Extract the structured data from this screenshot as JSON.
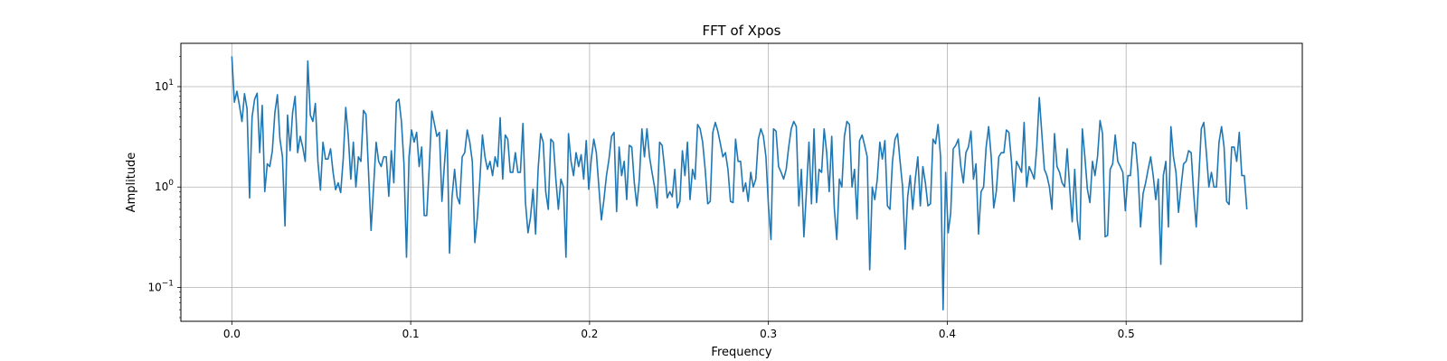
{
  "chart_data": {
    "type": "line",
    "title": "FFT of Xpos",
    "xlabel": "Frequency",
    "ylabel": "Amplitude",
    "xlim": [
      -0.0285,
      0.5985
    ],
    "ylim": [
      0.046,
      27
    ],
    "yscale": "log",
    "grid": true,
    "x_ticks": [
      {
        "value": 0.0,
        "label": "0.0"
      },
      {
        "value": 0.1,
        "label": "0.1"
      },
      {
        "value": 0.2,
        "label": "0.2"
      },
      {
        "value": 0.3,
        "label": "0.3"
      },
      {
        "value": 0.4,
        "label": "0.4"
      },
      {
        "value": 0.5,
        "label": "0.5"
      }
    ],
    "y_ticks": [
      {
        "value": 0.1,
        "base": "10",
        "exp": "−1"
      },
      {
        "value": 1,
        "base": "10",
        "exp": "0"
      },
      {
        "value": 10,
        "base": "10",
        "exp": "1"
      }
    ],
    "series": [
      {
        "color": "#1f77b4",
        "x_start": 0.0,
        "x_end": 0.5675,
        "values": [
          20.0,
          7.0,
          9.0,
          6.5,
          4.5,
          8.5,
          6.0,
          0.78,
          5.0,
          7.5,
          8.6,
          2.2,
          6.5,
          0.9,
          1.7,
          1.6,
          2.3,
          5.5,
          8.3,
          3.0,
          2.0,
          0.41,
          5.2,
          2.3,
          5.5,
          8.0,
          2.2,
          3.2,
          2.5,
          1.8,
          18.0,
          5.2,
          4.5,
          6.8,
          1.8,
          0.93,
          2.8,
          1.9,
          1.9,
          2.4,
          1.4,
          0.94,
          1.1,
          0.88,
          1.9,
          6.2,
          3.2,
          1.2,
          2.8,
          1.0,
          2.0,
          1.8,
          5.8,
          5.3,
          1.4,
          0.37,
          1.0,
          2.8,
          1.8,
          1.6,
          2.0,
          2.0,
          0.81,
          2.3,
          1.1,
          7.0,
          7.5,
          4.5,
          1.7,
          0.2,
          2.0,
          3.7,
          2.8,
          3.5,
          1.6,
          2.5,
          0.52,
          0.52,
          1.6,
          5.7,
          4.3,
          3.2,
          3.5,
          0.72,
          1.7,
          3.7,
          0.22,
          0.8,
          1.5,
          0.8,
          0.68,
          2.0,
          2.2,
          3.7,
          2.8,
          1.8,
          0.28,
          0.5,
          1.2,
          3.3,
          2.0,
          1.5,
          1.8,
          1.3,
          2.0,
          1.6,
          4.9,
          1.2,
          3.3,
          3.0,
          1.4,
          1.4,
          2.2,
          1.4,
          1.4,
          4.3,
          0.7,
          0.35,
          0.5,
          0.95,
          0.34,
          1.5,
          3.4,
          2.8,
          0.9,
          0.6,
          3.0,
          2.8,
          1.2,
          0.6,
          1.2,
          1.0,
          0.2,
          3.4,
          1.8,
          1.3,
          2.2,
          1.6,
          2.1,
          1.2,
          2.9,
          0.95,
          1.9,
          3.0,
          2.2,
          1.0,
          0.47,
          0.75,
          1.3,
          1.9,
          3.2,
          3.5,
          0.57,
          2.5,
          1.3,
          1.8,
          0.75,
          2.6,
          2.5,
          1.1,
          0.65,
          1.2,
          3.8,
          2.0,
          3.8,
          2.0,
          1.4,
          1.0,
          0.62,
          2.8,
          2.6,
          1.5,
          0.78,
          0.9,
          0.8,
          1.5,
          0.62,
          0.72,
          2.3,
          1.3,
          2.8,
          0.75,
          1.5,
          1.2,
          4.2,
          3.8,
          2.8,
          1.5,
          0.68,
          0.72,
          3.5,
          4.4,
          3.6,
          2.7,
          2.0,
          2.2,
          1.5,
          0.72,
          0.7,
          3.0,
          1.8,
          1.8,
          0.9,
          1.1,
          0.72,
          1.4,
          1.0,
          1.2,
          3.0,
          3.8,
          3.2,
          2.0,
          0.65,
          0.3,
          3.8,
          3.6,
          1.6,
          1.4,
          1.2,
          1.5,
          2.5,
          3.8,
          4.5,
          4.0,
          0.65,
          1.5,
          0.32,
          0.9,
          2.8,
          0.68,
          3.8,
          0.7,
          1.5,
          1.4,
          3.8,
          2.2,
          0.9,
          3.2,
          0.62,
          0.3,
          1.2,
          1.0,
          3.2,
          4.5,
          4.2,
          1.0,
          1.5,
          0.48,
          2.9,
          3.3,
          2.6,
          2.0,
          0.15,
          1.0,
          0.75,
          1.2,
          2.8,
          1.9,
          2.9,
          0.65,
          0.6,
          1.8,
          3.0,
          3.4,
          1.8,
          1.0,
          0.24,
          0.8,
          1.3,
          0.6,
          1.2,
          2.0,
          0.65,
          1.6,
          1.1,
          0.65,
          0.68,
          3.0,
          2.7,
          4.2,
          2.0,
          0.06,
          1.4,
          0.35,
          0.55,
          2.4,
          2.6,
          3.0,
          1.6,
          1.1,
          2.2,
          2.5,
          3.6,
          1.2,
          1.7,
          0.34,
          0.9,
          1.0,
          2.5,
          4.0,
          2.0,
          0.62,
          0.9,
          2.0,
          2.2,
          2.2,
          3.7,
          3.5,
          1.8,
          0.72,
          1.8,
          1.6,
          1.4,
          4.4,
          1.0,
          1.6,
          1.4,
          1.2,
          2.5,
          7.8,
          3.4,
          1.5,
          1.3,
          1.0,
          0.6,
          3.4,
          1.6,
          1.4,
          1.1,
          1.0,
          2.4,
          0.98,
          0.45,
          1.5,
          0.47,
          0.3,
          3.8,
          2.0,
          0.95,
          0.7,
          1.8,
          1.3,
          2.0,
          4.6,
          3.4,
          0.32,
          0.33,
          1.5,
          1.7,
          3.3,
          1.8,
          1.6,
          1.4,
          0.58,
          1.3,
          1.3,
          2.8,
          2.7,
          1.4,
          0.4,
          0.86,
          1.1,
          1.5,
          2.0,
          1.3,
          0.75,
          1.2,
          0.17,
          1.3,
          1.8,
          0.4,
          4.0,
          2.0,
          1.4,
          0.56,
          1.0,
          1.7,
          1.8,
          2.3,
          2.2,
          0.86,
          0.4,
          1.2,
          3.8,
          4.4,
          2.2,
          1.0,
          1.4,
          1.0,
          1.0,
          2.8,
          4.0,
          2.5,
          0.72,
          0.67,
          2.5,
          2.5,
          1.8,
          3.5,
          1.3,
          1.3,
          0.6
        ]
      }
    ]
  }
}
